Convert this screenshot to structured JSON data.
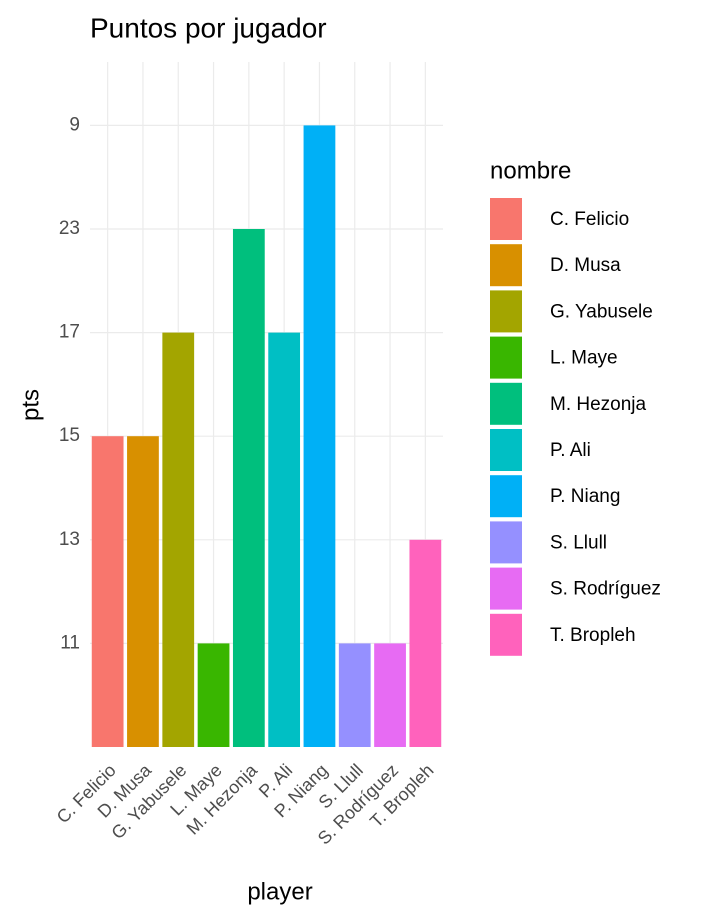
{
  "chart_data": {
    "type": "bar",
    "title": "Puntos por jugador",
    "x_label": "player",
    "y_label": "pts",
    "legend_title": "nombre",
    "categories": [
      "C. Felicio",
      "D. Musa",
      "G. Yabusele",
      "L. Maye",
      "M. Hezonja",
      "P. Ali",
      "P. Niang",
      "S. Llull",
      "S. Rodríguez",
      "T. Bropleh"
    ],
    "values": [
      15,
      15,
      17,
      11,
      23,
      17,
      9,
      11,
      11,
      13
    ],
    "colors": [
      "#F8766D",
      "#D89000",
      "#A3A500",
      "#39B600",
      "#00BF7D",
      "#00BFC4",
      "#00B0F6",
      "#9590FF",
      "#E76BF3",
      "#FF62BC"
    ],
    "y_discrete": true,
    "yticks": [
      11,
      13,
      15,
      17,
      23,
      9
    ],
    "grid": true
  }
}
